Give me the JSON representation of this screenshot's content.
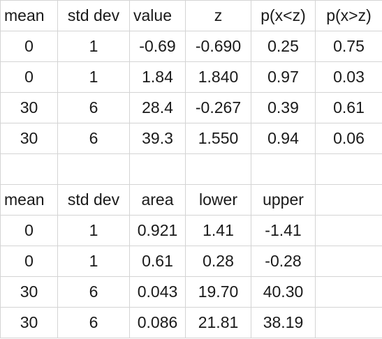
{
  "table1": {
    "headers": [
      "mean",
      "std dev",
      "value",
      "z",
      "p(x<z)",
      "p(x>z)"
    ],
    "rows": [
      [
        "0",
        "1",
        "-0.69",
        "-0.690",
        "0.25",
        "0.75"
      ],
      [
        "0",
        "1",
        "1.84",
        "1.840",
        "0.97",
        "0.03"
      ],
      [
        "30",
        "6",
        "28.4",
        "-0.267",
        "0.39",
        "0.61"
      ],
      [
        "30",
        "6",
        "39.3",
        "1.550",
        "0.94",
        "0.06"
      ]
    ]
  },
  "table2": {
    "headers": [
      "mean",
      "std dev",
      "area",
      "lower",
      "upper",
      ""
    ],
    "rows": [
      [
        "0",
        "1",
        "0.921",
        "1.41",
        "-1.41",
        ""
      ],
      [
        "0",
        "1",
        "0.61",
        "0.28",
        "-0.28",
        ""
      ],
      [
        "30",
        "6",
        "0.043",
        "19.70",
        "40.30",
        ""
      ],
      [
        "30",
        "6",
        "0.086",
        "21.81",
        "38.19",
        ""
      ]
    ]
  }
}
